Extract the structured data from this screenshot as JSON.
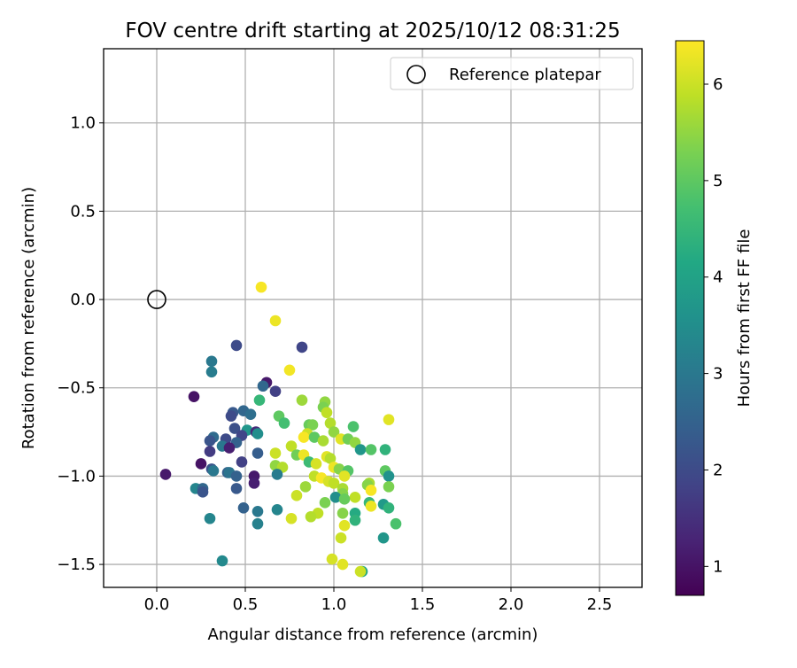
{
  "chart_data": {
    "type": "scatter",
    "title": "FOV centre drift starting at 2025/10/12 08:31:25",
    "xlabel": "Angular distance from reference (arcmin)",
    "ylabel": "Rotation from reference (arcmin)",
    "xlim": [
      -0.3,
      2.74
    ],
    "ylim": [
      -1.63,
      1.42
    ],
    "xticks": [
      "0.0",
      "0.5",
      "1.0",
      "1.5",
      "2.0",
      "2.5"
    ],
    "yticks": [
      "−1.5",
      "−1.0",
      "−0.5",
      "0.0",
      "0.5",
      "1.0"
    ],
    "grid": true,
    "legend": {
      "position": "top-right",
      "label": "Reference platepar"
    },
    "reference_point": {
      "x": 0.0,
      "y": 0.0
    },
    "colorbar": {
      "label": "Hours from first FF file",
      "range": [
        0.7,
        6.45
      ],
      "ticks": [
        "1",
        "2",
        "3",
        "4",
        "5",
        "6"
      ],
      "colormap": "viridis"
    },
    "points": [
      {
        "x": 0.59,
        "y": 0.07,
        "h": 6.4
      },
      {
        "x": 0.67,
        "y": -0.12,
        "h": 6.3
      },
      {
        "x": 0.75,
        "y": -0.4,
        "h": 6.35
      },
      {
        "x": 0.45,
        "y": -0.26,
        "h": 2.0
      },
      {
        "x": 0.82,
        "y": -0.27,
        "h": 1.9
      },
      {
        "x": 0.31,
        "y": -0.35,
        "h": 3.0
      },
      {
        "x": 0.31,
        "y": -0.41,
        "h": 3.1
      },
      {
        "x": 0.62,
        "y": -0.47,
        "h": 1.1
      },
      {
        "x": 0.6,
        "y": -0.49,
        "h": 2.6
      },
      {
        "x": 0.67,
        "y": -0.52,
        "h": 1.8
      },
      {
        "x": 0.21,
        "y": -0.55,
        "h": 1.0
      },
      {
        "x": 0.58,
        "y": -0.57,
        "h": 4.5
      },
      {
        "x": 0.82,
        "y": -0.57,
        "h": 5.6
      },
      {
        "x": 0.95,
        "y": -0.58,
        "h": 5.5
      },
      {
        "x": 0.94,
        "y": -0.61,
        "h": 5.3
      },
      {
        "x": 0.49,
        "y": -0.63,
        "h": 2.6
      },
      {
        "x": 0.43,
        "y": -0.64,
        "h": 2.3
      },
      {
        "x": 0.53,
        "y": -0.65,
        "h": 2.8
      },
      {
        "x": 0.42,
        "y": -0.66,
        "h": 2.0
      },
      {
        "x": 0.96,
        "y": -0.64,
        "h": 5.9
      },
      {
        "x": 0.69,
        "y": -0.66,
        "h": 5.0
      },
      {
        "x": 1.31,
        "y": -0.68,
        "h": 6.2
      },
      {
        "x": 0.72,
        "y": -0.7,
        "h": 4.7
      },
      {
        "x": 0.86,
        "y": -0.71,
        "h": 5.1
      },
      {
        "x": 0.88,
        "y": -0.71,
        "h": 5.3
      },
      {
        "x": 0.98,
        "y": -0.7,
        "h": 5.8
      },
      {
        "x": 1.11,
        "y": -0.72,
        "h": 4.8
      },
      {
        "x": 0.44,
        "y": -0.73,
        "h": 2.1
      },
      {
        "x": 0.51,
        "y": -0.74,
        "h": 3.7
      },
      {
        "x": 0.56,
        "y": -0.75,
        "h": 1.4
      },
      {
        "x": 0.57,
        "y": -0.76,
        "h": 3.5
      },
      {
        "x": 0.48,
        "y": -0.77,
        "h": 1.9
      },
      {
        "x": 0.85,
        "y": -0.76,
        "h": 6.0
      },
      {
        "x": 1.0,
        "y": -0.75,
        "h": 5.5
      },
      {
        "x": 0.83,
        "y": -0.78,
        "h": 6.4
      },
      {
        "x": 0.89,
        "y": -0.78,
        "h": 5.0
      },
      {
        "x": 1.04,
        "y": -0.79,
        "h": 6.2
      },
      {
        "x": 1.08,
        "y": -0.79,
        "h": 5.2
      },
      {
        "x": 0.32,
        "y": -0.78,
        "h": 2.7
      },
      {
        "x": 0.39,
        "y": -0.79,
        "h": 2.0
      },
      {
        "x": 0.3,
        "y": -0.8,
        "h": 2.2
      },
      {
        "x": 0.45,
        "y": -0.81,
        "h": 2.5
      },
      {
        "x": 0.37,
        "y": -0.83,
        "h": 3.0
      },
      {
        "x": 0.94,
        "y": -0.8,
        "h": 5.7
      },
      {
        "x": 1.12,
        "y": -0.81,
        "h": 5.5
      },
      {
        "x": 0.41,
        "y": -0.84,
        "h": 1.2
      },
      {
        "x": 0.76,
        "y": -0.83,
        "h": 5.9
      },
      {
        "x": 1.15,
        "y": -0.85,
        "h": 3.7
      },
      {
        "x": 1.21,
        "y": -0.85,
        "h": 4.9
      },
      {
        "x": 1.29,
        "y": -0.85,
        "h": 4.4
      },
      {
        "x": 0.3,
        "y": -0.86,
        "h": 1.7
      },
      {
        "x": 0.57,
        "y": -0.87,
        "h": 2.4
      },
      {
        "x": 0.67,
        "y": -0.87,
        "h": 6.0
      },
      {
        "x": 0.79,
        "y": -0.88,
        "h": 5.2
      },
      {
        "x": 0.83,
        "y": -0.88,
        "h": 6.3
      },
      {
        "x": 0.96,
        "y": -0.89,
        "h": 6.2
      },
      {
        "x": 0.98,
        "y": -0.9,
        "h": 5.8
      },
      {
        "x": 0.48,
        "y": -0.92,
        "h": 1.8
      },
      {
        "x": 0.25,
        "y": -0.93,
        "h": 1.0
      },
      {
        "x": 0.86,
        "y": -0.92,
        "h": 4.6
      },
      {
        "x": 0.9,
        "y": -0.93,
        "h": 6.1
      },
      {
        "x": 0.67,
        "y": -0.94,
        "h": 5.5
      },
      {
        "x": 0.71,
        "y": -0.95,
        "h": 5.8
      },
      {
        "x": 1.0,
        "y": -0.95,
        "h": 6.3
      },
      {
        "x": 1.03,
        "y": -0.96,
        "h": 5.4
      },
      {
        "x": 0.31,
        "y": -0.96,
        "h": 2.2
      },
      {
        "x": 0.32,
        "y": -0.97,
        "h": 3.0
      },
      {
        "x": 0.4,
        "y": -0.98,
        "h": 2.5
      },
      {
        "x": 0.41,
        "y": -0.98,
        "h": 2.9
      },
      {
        "x": 1.29,
        "y": -0.97,
        "h": 5.0
      },
      {
        "x": 1.08,
        "y": -0.97,
        "h": 4.9
      },
      {
        "x": 0.05,
        "y": -0.99,
        "h": 1.1
      },
      {
        "x": 0.45,
        "y": -1.0,
        "h": 2.5
      },
      {
        "x": 0.68,
        "y": -0.99,
        "h": 3.1
      },
      {
        "x": 0.89,
        "y": -1.0,
        "h": 5.9
      },
      {
        "x": 0.93,
        "y": -1.01,
        "h": 6.4
      },
      {
        "x": 1.06,
        "y": -1.0,
        "h": 6.2
      },
      {
        "x": 1.31,
        "y": -1.0,
        "h": 3.6
      },
      {
        "x": 0.55,
        "y": -1.0,
        "h": 1.1
      },
      {
        "x": 0.55,
        "y": -1.04,
        "h": 1.2
      },
      {
        "x": 0.97,
        "y": -1.03,
        "h": 6.1
      },
      {
        "x": 1.0,
        "y": -1.04,
        "h": 5.9
      },
      {
        "x": 1.2,
        "y": -1.04,
        "h": 5.7
      },
      {
        "x": 1.19,
        "y": -1.05,
        "h": 5.4
      },
      {
        "x": 1.31,
        "y": -1.06,
        "h": 5.3
      },
      {
        "x": 0.84,
        "y": -1.06,
        "h": 5.6
      },
      {
        "x": 0.22,
        "y": -1.07,
        "h": 3.3
      },
      {
        "x": 0.26,
        "y": -1.07,
        "h": 2.6
      },
      {
        "x": 0.45,
        "y": -1.07,
        "h": 2.3
      },
      {
        "x": 0.26,
        "y": -1.09,
        "h": 2.2
      },
      {
        "x": 1.05,
        "y": -1.07,
        "h": 5.7
      },
      {
        "x": 1.21,
        "y": -1.08,
        "h": 6.4
      },
      {
        "x": 1.05,
        "y": -1.1,
        "h": 5.4
      },
      {
        "x": 0.79,
        "y": -1.11,
        "h": 6.0
      },
      {
        "x": 1.12,
        "y": -1.12,
        "h": 5.9
      },
      {
        "x": 1.01,
        "y": -1.12,
        "h": 3.5
      },
      {
        "x": 1.06,
        "y": -1.13,
        "h": 5.1
      },
      {
        "x": 0.95,
        "y": -1.15,
        "h": 5.3
      },
      {
        "x": 1.2,
        "y": -1.15,
        "h": 4.5
      },
      {
        "x": 1.28,
        "y": -1.16,
        "h": 3.8
      },
      {
        "x": 1.21,
        "y": -1.17,
        "h": 6.3
      },
      {
        "x": 1.31,
        "y": -1.18,
        "h": 4.4
      },
      {
        "x": 0.49,
        "y": -1.18,
        "h": 2.5
      },
      {
        "x": 0.57,
        "y": -1.2,
        "h": 3.0
      },
      {
        "x": 0.68,
        "y": -1.19,
        "h": 3.3
      },
      {
        "x": 1.05,
        "y": -1.21,
        "h": 5.4
      },
      {
        "x": 1.12,
        "y": -1.21,
        "h": 4.2
      },
      {
        "x": 0.91,
        "y": -1.21,
        "h": 5.9
      },
      {
        "x": 0.87,
        "y": -1.23,
        "h": 5.8
      },
      {
        "x": 0.76,
        "y": -1.24,
        "h": 6.1
      },
      {
        "x": 1.12,
        "y": -1.25,
        "h": 4.4
      },
      {
        "x": 0.3,
        "y": -1.24,
        "h": 3.3
      },
      {
        "x": 0.57,
        "y": -1.27,
        "h": 3.2
      },
      {
        "x": 1.06,
        "y": -1.28,
        "h": 6.2
      },
      {
        "x": 1.35,
        "y": -1.27,
        "h": 4.8
      },
      {
        "x": 1.04,
        "y": -1.35,
        "h": 6.0
      },
      {
        "x": 1.28,
        "y": -1.35,
        "h": 3.7
      },
      {
        "x": 0.99,
        "y": -1.47,
        "h": 6.1
      },
      {
        "x": 0.37,
        "y": -1.48,
        "h": 3.4
      },
      {
        "x": 1.05,
        "y": -1.5,
        "h": 6.2
      },
      {
        "x": 1.16,
        "y": -1.54,
        "h": 4.1
      },
      {
        "x": 1.15,
        "y": -1.54,
        "h": 6.0
      }
    ]
  }
}
